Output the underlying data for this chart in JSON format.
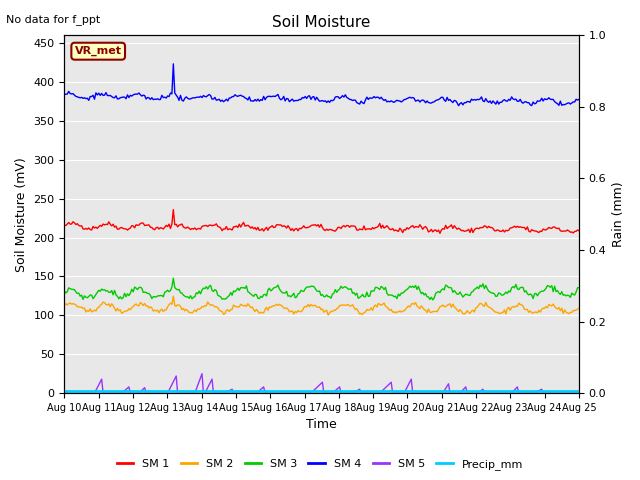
{
  "title": "Soil Moisture",
  "xlabel": "Time",
  "ylabel_left": "Soil Moisture (mV)",
  "ylabel_right": "Rain (mm)",
  "annotation_text": "No data for f_ppt",
  "box_label": "VR_met",
  "ylim_left": [
    0,
    460
  ],
  "ylim_right": [
    0.0,
    1.0
  ],
  "yticks_left": [
    0,
    50,
    100,
    150,
    200,
    250,
    300,
    350,
    400,
    450
  ],
  "yticks_right": [
    0.0,
    0.2,
    0.4,
    0.6,
    0.8,
    1.0
  ],
  "n_points": 360,
  "days": 15,
  "sm1_base": 215,
  "sm1_spike_val": 237,
  "sm2_base": 110,
  "sm2_spike_val": 125,
  "sm3_base": 128,
  "sm3_spike_val": 147,
  "sm4_base": 382,
  "sm4_spike_val": 425,
  "colors": {
    "sm1": "#FF0000",
    "sm2": "#FFA500",
    "sm3": "#00CC00",
    "sm4": "#0000FF",
    "sm5": "#9933FF",
    "precip": "#00CCFF",
    "background": "#E8E8E8"
  },
  "legend_items": [
    "SM 1",
    "SM 2",
    "SM 3",
    "SM 4",
    "SM 5",
    "Precip_mm"
  ],
  "legend_colors": [
    "#FF0000",
    "#FFA500",
    "#00CC00",
    "#0000FF",
    "#9933FF",
    "#00CCFF"
  ]
}
